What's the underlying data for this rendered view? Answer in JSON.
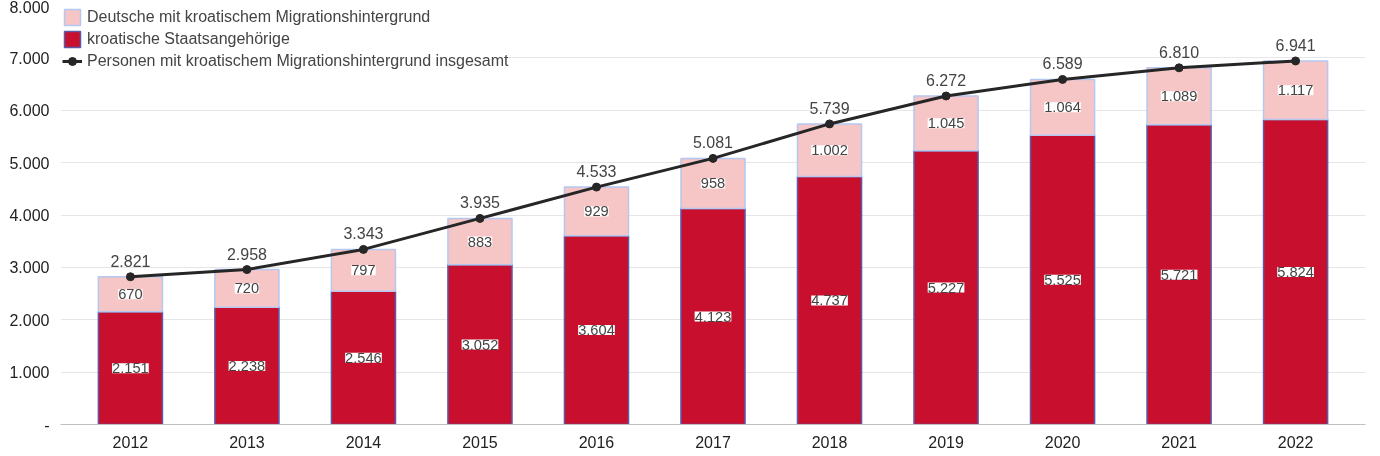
{
  "chart_data": {
    "type": "bar",
    "stacked": true,
    "legend": "top left",
    "grid": "y",
    "marker": "circle",
    "categories": [
      "2012",
      "2013",
      "2014",
      "2015",
      "2016",
      "2017",
      "2018",
      "2019",
      "2020",
      "2021",
      "2022"
    ],
    "ylim": [
      0,
      8000
    ],
    "yticks": [
      {
        "value": 0,
        "label": "-"
      },
      {
        "value": 1000,
        "label": "1.000"
      },
      {
        "value": 2000,
        "label": "2.000"
      },
      {
        "value": 3000,
        "label": "3.000"
      },
      {
        "value": 4000,
        "label": "4.000"
      },
      {
        "value": 5000,
        "label": "5.000"
      },
      {
        "value": 6000,
        "label": "6.000"
      },
      {
        "value": 7000,
        "label": "7.000"
      },
      {
        "value": 8000,
        "label": "8.000"
      }
    ],
    "series": [
      {
        "name": "kroatische Staatsangehörige",
        "color": "#c8102e",
        "values": [
          2151,
          2238,
          2546,
          3052,
          3604,
          4123,
          4737,
          5227,
          5525,
          5721,
          5824
        ],
        "value_labels": [
          "2.151",
          "2.238",
          "2.546",
          "3.052",
          "3.604",
          "4.123",
          "4.737",
          "5.227",
          "5.525",
          "5.721",
          "5.824"
        ]
      },
      {
        "name": "Deutsche mit kroatischem Migrationshintergrund",
        "color": "#f6c6c6",
        "values": [
          670,
          720,
          797,
          883,
          929,
          958,
          1002,
          1045,
          1064,
          1089,
          1117
        ],
        "value_labels": [
          "670",
          "720",
          "797",
          "883",
          "929",
          "958",
          "1.002",
          "1.045",
          "1.064",
          "1.089",
          "1.117"
        ]
      },
      {
        "name": "Personen mit kroatischem Migrationshintergrund insgesamt",
        "type": "line",
        "color": "#262626",
        "values": [
          2821,
          2958,
          3343,
          3935,
          4533,
          5081,
          5739,
          6272,
          6589,
          6810,
          6941
        ],
        "value_labels": [
          "2.821",
          "2.958",
          "3.343",
          "3.935",
          "4.533",
          "5.081",
          "5.739",
          "6.272",
          "6.589",
          "6.810",
          "6.941"
        ]
      }
    ]
  }
}
